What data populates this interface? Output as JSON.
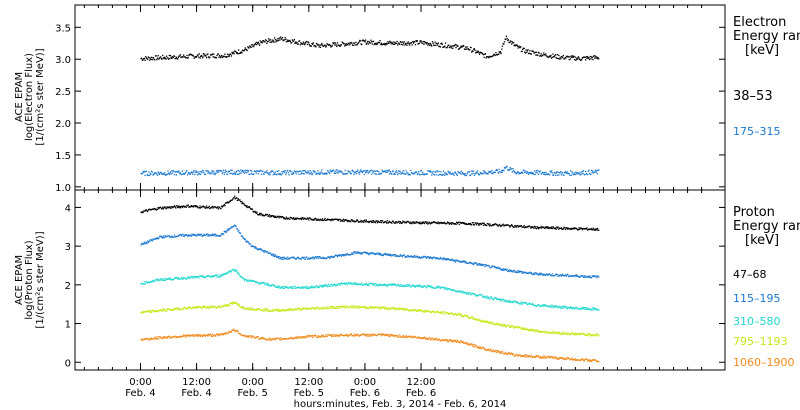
{
  "chart_data": [
    {
      "type": "scatter",
      "ylabel": "ACE EPAM",
      "ylabel2": "log(Electron Flux)",
      "ylabel3": "[1/(cm²s ster MeV)]",
      "ylim": [
        0.95,
        3.85
      ],
      "yticks": [
        "1.0",
        "1.5",
        "2.0",
        "2.5",
        "3.0",
        "3.5"
      ],
      "yticks_values": [
        1.0,
        1.5,
        2.0,
        2.5,
        3.0,
        3.5
      ],
      "legend_title": [
        "Electron",
        "Energy ran",
        "[keV]"
      ],
      "series": [
        {
          "name": "38–53",
          "color": "#000000",
          "points": [
            [
              0,
              3.02
            ],
            [
              6,
              3.04
            ],
            [
              12,
              3.06
            ],
            [
              18,
              3.07
            ],
            [
              22,
              3.15
            ],
            [
              26,
              3.28
            ],
            [
              30,
              3.33
            ],
            [
              34,
              3.27
            ],
            [
              38,
              3.22
            ],
            [
              42,
              3.24
            ],
            [
              48,
              3.28
            ],
            [
              54,
              3.26
            ],
            [
              60,
              3.27
            ],
            [
              66,
              3.22
            ],
            [
              70,
              3.18
            ],
            [
              74,
              3.05
            ],
            [
              77,
              3.13
            ],
            [
              78,
              3.35
            ],
            [
              80,
              3.22
            ],
            [
              82,
              3.14
            ],
            [
              86,
              3.08
            ],
            [
              90,
              3.04
            ],
            [
              94,
              3.02
            ],
            [
              98,
              3.04
            ]
          ]
        },
        {
          "name": "175–315",
          "color": "#1a78d0",
          "points": [
            [
              0,
              1.22
            ],
            [
              10,
              1.23
            ],
            [
              20,
              1.24
            ],
            [
              30,
              1.23
            ],
            [
              40,
              1.24
            ],
            [
              50,
              1.24
            ],
            [
              60,
              1.23
            ],
            [
              70,
              1.22
            ],
            [
              77,
              1.25
            ],
            [
              78,
              1.32
            ],
            [
              80,
              1.24
            ],
            [
              90,
              1.22
            ],
            [
              98,
              1.24
            ]
          ]
        }
      ]
    },
    {
      "type": "scatter",
      "ylabel": "ACE EPAM",
      "ylabel2": "log(Proton Flux)",
      "ylabel3": "[1/(cm²s ster MeV)]",
      "ylim": [
        -0.2,
        4.45
      ],
      "yticks": [
        "0",
        "1",
        "2",
        "3",
        "4"
      ],
      "yticks_values": [
        0,
        1,
        2,
        3,
        4
      ],
      "legend_title": [
        "Proton",
        "Energy ran",
        "[keV]"
      ],
      "series": [
        {
          "name": "47–68",
          "color": "#000000",
          "points": [
            [
              0,
              3.9
            ],
            [
              4,
              4.0
            ],
            [
              10,
              4.05
            ],
            [
              17,
              4.0
            ],
            [
              20,
              4.28
            ],
            [
              22,
              4.1
            ],
            [
              25,
              3.85
            ],
            [
              30,
              3.75
            ],
            [
              40,
              3.7
            ],
            [
              50,
              3.65
            ],
            [
              60,
              3.62
            ],
            [
              70,
              3.6
            ],
            [
              78,
              3.55
            ],
            [
              84,
              3.5
            ],
            [
              92,
              3.47
            ],
            [
              98,
              3.45
            ]
          ]
        },
        {
          "name": "115–195",
          "color": "#1a78d0",
          "points": [
            [
              0,
              3.05
            ],
            [
              4,
              3.25
            ],
            [
              10,
              3.3
            ],
            [
              17,
              3.3
            ],
            [
              20,
              3.55
            ],
            [
              22,
              3.2
            ],
            [
              24,
              3.0
            ],
            [
              27,
              2.85
            ],
            [
              30,
              2.7
            ],
            [
              40,
              2.72
            ],
            [
              46,
              2.85
            ],
            [
              52,
              2.8
            ],
            [
              58,
              2.75
            ],
            [
              64,
              2.7
            ],
            [
              72,
              2.55
            ],
            [
              78,
              2.4
            ],
            [
              84,
              2.3
            ],
            [
              92,
              2.25
            ],
            [
              98,
              2.22
            ]
          ]
        },
        {
          "name": "310–580",
          "color": "#22d8d0",
          "points": [
            [
              0,
              2.05
            ],
            [
              4,
              2.15
            ],
            [
              10,
              2.2
            ],
            [
              17,
              2.25
            ],
            [
              20,
              2.42
            ],
            [
              22,
              2.15
            ],
            [
              26,
              2.05
            ],
            [
              30,
              1.95
            ],
            [
              36,
              1.95
            ],
            [
              44,
              2.05
            ],
            [
              50,
              2.02
            ],
            [
              56,
              2.0
            ],
            [
              64,
              1.95
            ],
            [
              72,
              1.75
            ],
            [
              78,
              1.6
            ],
            [
              84,
              1.5
            ],
            [
              92,
              1.42
            ],
            [
              98,
              1.38
            ]
          ]
        },
        {
          "name": "795–1193",
          "color": "#c8e617",
          "points": [
            [
              0,
              1.3
            ],
            [
              4,
              1.35
            ],
            [
              10,
              1.42
            ],
            [
              17,
              1.45
            ],
            [
              20,
              1.55
            ],
            [
              22,
              1.42
            ],
            [
              28,
              1.35
            ],
            [
              36,
              1.4
            ],
            [
              44,
              1.45
            ],
            [
              52,
              1.42
            ],
            [
              60,
              1.35
            ],
            [
              68,
              1.25
            ],
            [
              74,
              1.05
            ],
            [
              80,
              0.92
            ],
            [
              86,
              0.8
            ],
            [
              92,
              0.75
            ],
            [
              98,
              0.72
            ]
          ]
        },
        {
          "name": "1060–1900",
          "color": "#f08a1c",
          "points": [
            [
              0,
              0.6
            ],
            [
              4,
              0.65
            ],
            [
              10,
              0.7
            ],
            [
              17,
              0.72
            ],
            [
              20,
              0.85
            ],
            [
              22,
              0.7
            ],
            [
              28,
              0.6
            ],
            [
              36,
              0.68
            ],
            [
              44,
              0.72
            ],
            [
              52,
              0.72
            ],
            [
              60,
              0.65
            ],
            [
              68,
              0.55
            ],
            [
              74,
              0.35
            ],
            [
              80,
              0.2
            ],
            [
              86,
              0.15
            ],
            [
              92,
              0.1
            ],
            [
              98,
              0.05
            ]
          ]
        }
      ]
    }
  ],
  "x_axis": {
    "xlim": [
      -14,
      125
    ],
    "ticks": [
      {
        "value": 0,
        "line1": "0:00",
        "line2": "Feb. 4"
      },
      {
        "value": 12,
        "line1": "12:00",
        "line2": "Feb. 4"
      },
      {
        "value": 24,
        "line1": "0:00",
        "line2": "Feb. 5"
      },
      {
        "value": 36,
        "line1": "12:00",
        "line2": "Feb. 5"
      },
      {
        "value": 48,
        "line1": "0:00",
        "line2": "Feb. 6"
      },
      {
        "value": 60,
        "line1": "12:00",
        "line2": "Feb. 6"
      }
    ],
    "label": "hours:minutes, Feb.  3, 2014 - Feb.  6, 2014"
  }
}
